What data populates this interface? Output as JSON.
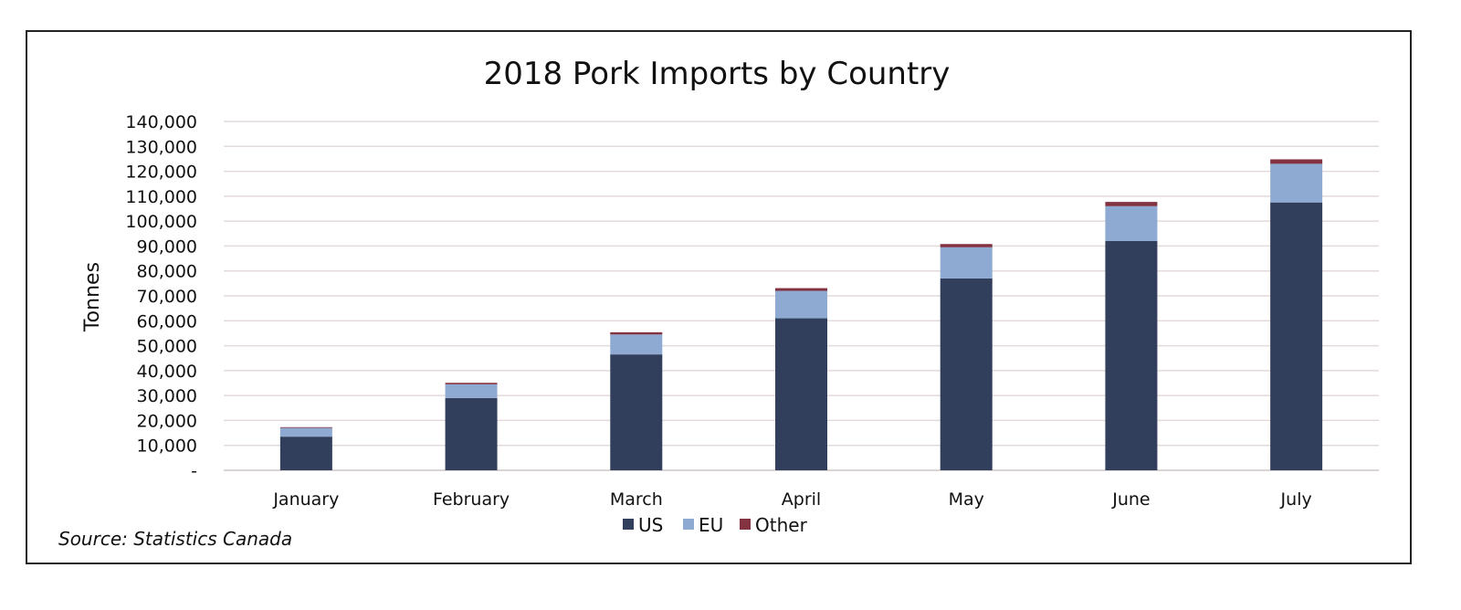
{
  "chart_data": {
    "type": "bar",
    "stacked": true,
    "title": "2018 Pork Imports by Country",
    "ylabel": "Tonnes",
    "xlabel": "",
    "categories": [
      "January",
      "February",
      "March",
      "April",
      "May",
      "June",
      "July"
    ],
    "series": [
      {
        "name": "US",
        "color": "#323f5c",
        "values": [
          13500,
          29000,
          46500,
          61000,
          77000,
          92000,
          107500
        ]
      },
      {
        "name": "EU",
        "color": "#8eaad2",
        "values": [
          3500,
          5500,
          8000,
          11000,
          12500,
          14000,
          15500
        ]
      },
      {
        "name": "Other",
        "color": "#823240",
        "values": [
          300,
          600,
          900,
          1100,
          1300,
          1700,
          1800
        ]
      }
    ],
    "ylim": [
      0,
      140000
    ],
    "yticks": [
      0,
      10000,
      20000,
      30000,
      40000,
      50000,
      60000,
      70000,
      80000,
      90000,
      100000,
      110000,
      120000,
      130000,
      140000
    ],
    "ytick_labels": [
      "-",
      "10,000",
      "20,000",
      "30,000",
      "40,000",
      "50,000",
      "60,000",
      "70,000",
      "80,000",
      "90,000",
      "100,000",
      "110,000",
      "120,000",
      "130,000",
      "140,000"
    ],
    "grid": true,
    "legend_position": "bottom-center",
    "source": "Source: Statistics Canada"
  }
}
